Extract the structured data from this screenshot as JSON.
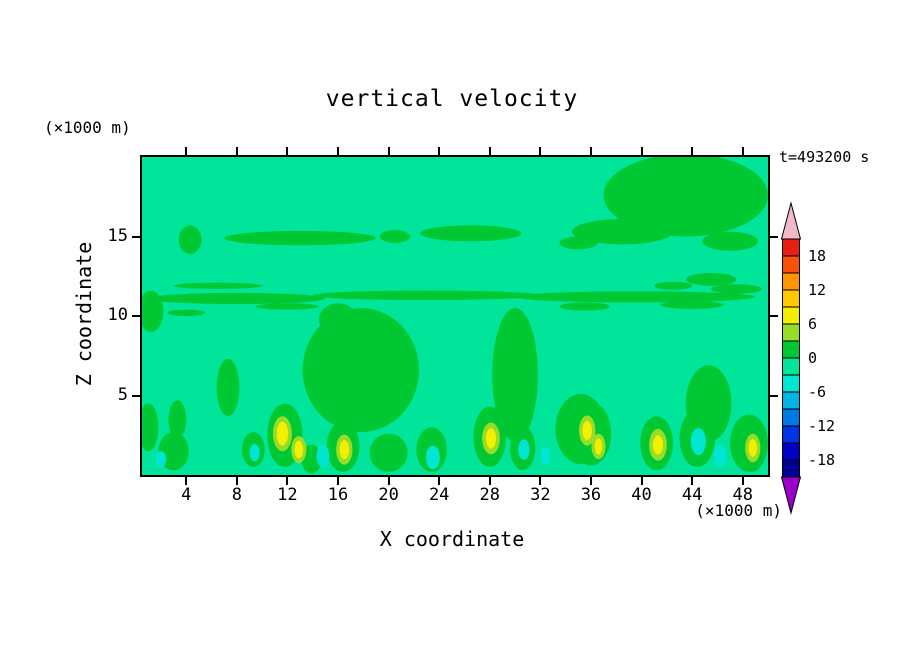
{
  "chart_data": {
    "type": "heatmap",
    "title": "vertical velocity",
    "time_annotation": "t=493200 s",
    "xlabel": "X coordinate",
    "ylabel": "Z coordinate",
    "x_unit_label": "(×1000 m)",
    "y_unit_label": "(×1000 m)",
    "xlim": [
      0.5,
      50
    ],
    "ylim": [
      0,
      20
    ],
    "x_ticks": [
      4,
      8,
      12,
      16,
      20,
      24,
      28,
      32,
      36,
      40,
      44,
      48
    ],
    "y_ticks": [
      5,
      10,
      15
    ],
    "contour_interval": 3,
    "grid": false,
    "legend_position": "right-colorbar",
    "colorbar": {
      "tick_labels": [
        "18",
        "12",
        "6",
        "0",
        "-6",
        "-12",
        "-18"
      ],
      "arrow_top_color": "#f0b9c8",
      "arrow_bottom_color": "#9b00c8",
      "segments": [
        {
          "range": [
            18,
            21
          ],
          "color": "#e61e14"
        },
        {
          "range": [
            15,
            18
          ],
          "color": "#fa500a"
        },
        {
          "range": [
            12,
            15
          ],
          "color": "#ff9600"
        },
        {
          "range": [
            9,
            12
          ],
          "color": "#ffc800"
        },
        {
          "range": [
            6,
            9
          ],
          "color": "#f0f000"
        },
        {
          "range": [
            3,
            6
          ],
          "color": "#96dc28"
        },
        {
          "range": [
            0,
            3
          ],
          "color": "#00c832"
        },
        {
          "range": [
            -3,
            0
          ],
          "color": "#00e59a"
        },
        {
          "range": [
            -6,
            -3
          ],
          "color": "#00e6d2"
        },
        {
          "range": [
            -9,
            -6
          ],
          "color": "#00b4e6"
        },
        {
          "range": [
            -12,
            -9
          ],
          "color": "#0078e6"
        },
        {
          "range": [
            -15,
            -12
          ],
          "color": "#0032e6"
        },
        {
          "range": [
            -18,
            -15
          ],
          "color": "#0000c8"
        },
        {
          "range": [
            -21,
            -18
          ],
          "color": "#000096"
        }
      ]
    },
    "background": {
      "value_range": [
        -3,
        0
      ],
      "color": "#00e59a"
    },
    "palette": {
      "g": "#00c832",
      "yg": "#96dc28",
      "y": "#f0f000",
      "c": "#00e6d2"
    },
    "palette_meaning": {
      "g": "0 to 3",
      "yg": "3 to 6",
      "y": "6 to 9",
      "c": "-6 to -3"
    },
    "feature_format": [
      "value_class",
      "x",
      "z",
      "rx",
      "rz"
    ],
    "features": [
      [
        "g",
        8.0,
        11.1,
        7.0,
        0.35
      ],
      [
        "g",
        23.0,
        11.3,
        9.0,
        0.3
      ],
      [
        "g",
        39.5,
        11.2,
        9.5,
        0.35
      ],
      [
        "g",
        6.5,
        11.9,
        3.5,
        0.2
      ],
      [
        "g",
        12.0,
        10.6,
        2.5,
        0.2
      ],
      [
        "g",
        35.5,
        10.6,
        2.0,
        0.25
      ],
      [
        "g",
        44.0,
        10.7,
        2.5,
        0.25
      ],
      [
        "g",
        47.5,
        11.7,
        2.0,
        0.3
      ],
      [
        "g",
        42.5,
        11.9,
        1.5,
        0.25
      ],
      [
        "g",
        4.0,
        10.2,
        1.5,
        0.2
      ],
      [
        "g",
        13.0,
        14.9,
        6.0,
        0.45
      ],
      [
        "g",
        26.5,
        15.2,
        4.0,
        0.5
      ],
      [
        "g",
        4.3,
        14.8,
        0.9,
        0.9
      ],
      [
        "g",
        20.5,
        15.0,
        1.2,
        0.4
      ],
      [
        "g",
        43.5,
        17.6,
        6.5,
        2.6
      ],
      [
        "g",
        38.5,
        15.3,
        4.0,
        0.8
      ],
      [
        "g",
        47.0,
        14.7,
        2.2,
        0.6
      ],
      [
        "g",
        35.0,
        14.6,
        1.5,
        0.4
      ],
      [
        "g",
        45.5,
        12.3,
        2.0,
        0.4
      ],
      [
        "g",
        17.8,
        6.6,
        4.6,
        3.9
      ],
      [
        "g",
        16.0,
        9.8,
        1.5,
        1.0
      ],
      [
        "g",
        30.0,
        6.3,
        1.8,
        4.2
      ],
      [
        "g",
        35.2,
        2.9,
        2.0,
        2.2
      ],
      [
        "g",
        45.3,
        4.5,
        1.8,
        2.4
      ],
      [
        "g",
        48.5,
        2.0,
        1.5,
        1.8
      ],
      [
        "g",
        1.2,
        10.3,
        1.0,
        1.3
      ],
      [
        "g",
        1.0,
        3.0,
        0.8,
        1.5
      ],
      [
        "g",
        3.0,
        1.5,
        1.2,
        1.2
      ],
      [
        "g",
        7.3,
        5.5,
        0.9,
        1.8
      ],
      [
        "g",
        3.3,
        3.5,
        0.7,
        1.2
      ],
      [
        "g",
        11.8,
        2.5,
        1.4,
        2.0
      ],
      [
        "g",
        16.4,
        1.8,
        1.3,
        1.6
      ],
      [
        "g",
        20.0,
        1.4,
        1.5,
        1.2
      ],
      [
        "g",
        23.4,
        1.6,
        1.2,
        1.4
      ],
      [
        "g",
        28.0,
        2.4,
        1.3,
        1.9
      ],
      [
        "g",
        30.6,
        1.7,
        1.0,
        1.4
      ],
      [
        "g",
        36.0,
        2.6,
        1.6,
        2.0
      ],
      [
        "g",
        41.2,
        2.0,
        1.3,
        1.7
      ],
      [
        "g",
        44.4,
        2.3,
        1.4,
        1.8
      ],
      [
        "g",
        48.7,
        1.8,
        1.2,
        1.6
      ],
      [
        "g",
        9.3,
        1.6,
        0.9,
        1.1
      ],
      [
        "g",
        13.9,
        1.0,
        0.8,
        0.9
      ],
      [
        "yg",
        11.6,
        2.6,
        0.75,
        1.1
      ],
      [
        "y",
        11.6,
        2.6,
        0.45,
        0.75
      ],
      [
        "yg",
        12.9,
        1.6,
        0.6,
        0.85
      ],
      [
        "y",
        12.9,
        1.6,
        0.35,
        0.55
      ],
      [
        "yg",
        16.5,
        1.6,
        0.65,
        0.95
      ],
      [
        "y",
        16.5,
        1.6,
        0.38,
        0.6
      ],
      [
        "yg",
        28.1,
        2.3,
        0.7,
        1.0
      ],
      [
        "y",
        28.1,
        2.3,
        0.4,
        0.65
      ],
      [
        "yg",
        35.7,
        2.8,
        0.65,
        0.95
      ],
      [
        "y",
        35.7,
        2.8,
        0.38,
        0.6
      ],
      [
        "yg",
        36.6,
        1.8,
        0.55,
        0.8
      ],
      [
        "y",
        36.6,
        1.8,
        0.3,
        0.5
      ],
      [
        "yg",
        41.3,
        1.9,
        0.7,
        1.0
      ],
      [
        "y",
        41.3,
        1.9,
        0.4,
        0.6
      ],
      [
        "yg",
        48.8,
        1.7,
        0.6,
        0.9
      ],
      [
        "y",
        48.8,
        1.7,
        0.35,
        0.55
      ],
      [
        "c",
        14.8,
        1.2,
        0.5,
        0.7
      ],
      [
        "c",
        23.5,
        1.1,
        0.55,
        0.75
      ],
      [
        "c",
        30.7,
        1.6,
        0.45,
        0.65
      ],
      [
        "c",
        32.4,
        1.2,
        0.4,
        0.6
      ],
      [
        "c",
        44.5,
        2.1,
        0.6,
        0.85
      ],
      [
        "c",
        46.2,
        1.2,
        0.5,
        0.7
      ],
      [
        "c",
        9.4,
        1.4,
        0.4,
        0.55
      ],
      [
        "c",
        2.0,
        1.0,
        0.4,
        0.5
      ]
    ]
  }
}
